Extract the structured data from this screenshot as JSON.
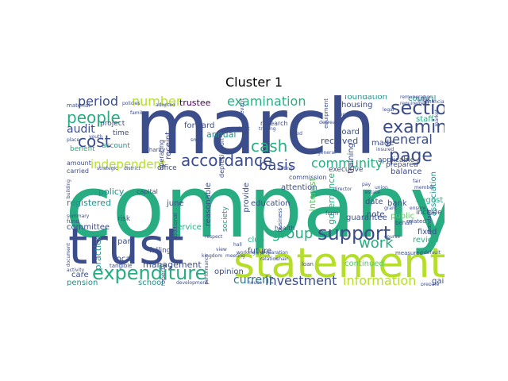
{
  "title": "Cluster 1",
  "palette": {
    "purple": "#440154",
    "indigo": "#3b4d8a",
    "blue": "#2c728e",
    "teal": "#21908c",
    "green": "#27ad81",
    "lime": "#5ec962",
    "yellow": "#b5de2b"
  },
  "words": [
    {
      "text": "company",
      "c": "green"
    },
    {
      "text": "march",
      "c": "indigo"
    },
    {
      "text": "trust",
      "c": "indigo"
    },
    {
      "text": "statement",
      "c": "yellow"
    },
    {
      "text": "expenditure",
      "c": "green"
    },
    {
      "text": "support",
      "c": "indigo"
    },
    {
      "text": "section",
      "c": "indigo"
    },
    {
      "text": "examiner",
      "c": "indigo"
    },
    {
      "text": "examination",
      "c": "green"
    },
    {
      "text": "accordance",
      "c": "indigo"
    },
    {
      "text": "people",
      "c": "green"
    },
    {
      "text": "cost",
      "c": "indigo"
    },
    {
      "text": "number",
      "c": "yellow"
    },
    {
      "text": "page",
      "c": "indigo"
    },
    {
      "text": "independent",
      "c": "yellow"
    },
    {
      "text": "cash",
      "c": "green"
    },
    {
      "text": "basis",
      "c": "indigo"
    },
    {
      "text": "community",
      "c": "green"
    },
    {
      "text": "group",
      "c": "green"
    },
    {
      "text": "work",
      "c": "green"
    },
    {
      "text": "information",
      "c": "yellow"
    },
    {
      "text": "investment",
      "c": "indigo"
    },
    {
      "text": "current",
      "c": "blue"
    },
    {
      "text": "general",
      "c": "indigo"
    },
    {
      "text": "period",
      "c": "indigo"
    },
    {
      "text": "audit",
      "c": "indigo"
    },
    {
      "text": "trustee",
      "c": "purple"
    },
    {
      "text": "received",
      "c": "indigo"
    },
    {
      "text": "annual",
      "c": "teal"
    },
    {
      "text": "board",
      "c": "indigo"
    },
    {
      "text": "council",
      "c": "teal"
    },
    {
      "text": "housing",
      "c": "indigo"
    },
    {
      "text": "foundation",
      "c": "teal"
    },
    {
      "text": "staff",
      "c": "green"
    },
    {
      "text": "made",
      "c": "indigo"
    },
    {
      "text": "prepared",
      "c": "indigo"
    },
    {
      "text": "balance",
      "c": "indigo"
    },
    {
      "text": "association",
      "c": "teal"
    },
    {
      "text": "guarantee",
      "c": "indigo"
    },
    {
      "text": "continued",
      "c": "lime"
    },
    {
      "text": "bank",
      "c": "indigo"
    },
    {
      "text": "date",
      "c": "indigo"
    },
    {
      "text": "note",
      "c": "indigo"
    },
    {
      "text": "public",
      "c": "lime"
    },
    {
      "text": "august",
      "c": "green"
    },
    {
      "text": "fixed",
      "c": "indigo"
    },
    {
      "text": "review",
      "c": "green"
    },
    {
      "text": "gain",
      "c": "indigo"
    },
    {
      "text": "include",
      "c": "indigo"
    },
    {
      "text": "governance",
      "c": "green"
    },
    {
      "text": "future",
      "c": "indigo"
    },
    {
      "text": "club",
      "c": "green"
    },
    {
      "text": "provide",
      "c": "indigo"
    },
    {
      "text": "interest",
      "c": "lime"
    },
    {
      "text": "education",
      "c": "indigo"
    },
    {
      "text": "reasonable",
      "c": "indigo"
    },
    {
      "text": "service",
      "c": "green"
    },
    {
      "text": "management",
      "c": "indigo"
    },
    {
      "text": "june",
      "c": "indigo"
    },
    {
      "text": "policy",
      "c": "teal"
    },
    {
      "text": "registered",
      "c": "teal"
    },
    {
      "text": "committee",
      "c": "indigo"
    },
    {
      "text": "practice",
      "c": "teal"
    },
    {
      "text": "part",
      "c": "indigo"
    },
    {
      "text": "local",
      "c": "indigo"
    },
    {
      "text": "care",
      "c": "indigo"
    },
    {
      "text": "pension",
      "c": "teal"
    },
    {
      "text": "school",
      "c": "teal"
    },
    {
      "text": "opinion",
      "c": "indigo"
    },
    {
      "text": "risk",
      "c": "indigo"
    },
    {
      "text": "falling",
      "c": "indigo"
    },
    {
      "text": "receipt",
      "c": "indigo"
    },
    {
      "text": "forward",
      "c": "indigo"
    },
    {
      "text": "research",
      "c": "indigo"
    },
    {
      "text": "training",
      "c": "indigo"
    },
    {
      "text": "attention",
      "c": "indigo"
    },
    {
      "text": "executive",
      "c": "indigo"
    },
    {
      "text": "project",
      "c": "indigo"
    },
    {
      "text": "time",
      "c": "indigo"
    },
    {
      "text": "benefit",
      "c": "green"
    },
    {
      "text": "account",
      "c": "teal"
    },
    {
      "text": "operating",
      "c": "indigo"
    },
    {
      "text": "capital",
      "c": "indigo"
    },
    {
      "text": "society",
      "c": "teal"
    },
    {
      "text": "health",
      "c": "indigo"
    },
    {
      "text": "office",
      "c": "indigo"
    },
    {
      "text": "carried",
      "c": "indigo"
    },
    {
      "text": "amount",
      "c": "indigo"
    },
    {
      "text": "continue",
      "c": "indigo"
    },
    {
      "text": "tangible",
      "c": "indigo"
    },
    {
      "text": "property",
      "c": "indigo"
    },
    {
      "text": "charity",
      "c": "indigo"
    },
    {
      "text": "applicable",
      "c": "indigo"
    },
    {
      "text": "standard",
      "c": "indigo"
    },
    {
      "text": "depreciation",
      "c": "indigo"
    },
    {
      "text": "related",
      "c": "indigo"
    },
    {
      "text": "relevant",
      "c": "indigo"
    },
    {
      "text": "equipment",
      "c": "indigo"
    },
    {
      "text": "material",
      "c": "indigo"
    },
    {
      "text": "commission",
      "c": "indigo"
    },
    {
      "text": "additional",
      "c": "indigo"
    },
    {
      "text": "auditor",
      "c": "indigo"
    },
    {
      "text": "fund",
      "c": "indigo"
    },
    {
      "text": "form",
      "c": "indigo"
    },
    {
      "text": "business",
      "c": "indigo"
    },
    {
      "text": "measured",
      "c": "indigo"
    },
    {
      "text": "behalf",
      "c": "indigo"
    },
    {
      "text": "loan",
      "c": "indigo"
    },
    {
      "text": "summary",
      "c": "indigo"
    },
    {
      "text": "director",
      "c": "indigo"
    },
    {
      "text": "legal",
      "c": "indigo"
    },
    {
      "text": "youth",
      "c": "indigo"
    },
    {
      "text": "district",
      "c": "indigo"
    },
    {
      "text": "strategic",
      "c": "indigo"
    },
    {
      "text": "financial",
      "c": "indigo"
    },
    {
      "text": "grant",
      "c": "indigo"
    },
    {
      "text": "union",
      "c": "indigo"
    },
    {
      "text": "estate",
      "c": "indigo"
    },
    {
      "text": "small",
      "c": "indigo"
    },
    {
      "text": "voting",
      "c": "indigo"
    },
    {
      "text": "remuneration",
      "c": "indigo"
    },
    {
      "text": "increase",
      "c": "indigo"
    },
    {
      "text": "decrease",
      "c": "indigo"
    },
    {
      "text": "market",
      "c": "indigo"
    },
    {
      "text": "member",
      "c": "indigo"
    },
    {
      "text": "order",
      "c": "indigo"
    },
    {
      "text": "meeting",
      "c": "indigo"
    },
    {
      "text": "view",
      "c": "indigo"
    },
    {
      "text": "provision",
      "c": "indigo"
    },
    {
      "text": "preparation",
      "c": "indigo"
    },
    {
      "text": "activity",
      "c": "indigo"
    },
    {
      "text": "kingdom",
      "c": "indigo"
    },
    {
      "text": "general",
      "c": "indigo"
    },
    {
      "text": "building",
      "c": "indigo"
    },
    {
      "text": "pay",
      "c": "indigo"
    },
    {
      "text": "trading",
      "c": "indigo"
    },
    {
      "text": "insured",
      "c": "indigo"
    },
    {
      "text": "ensure",
      "c": "indigo"
    },
    {
      "text": "fair",
      "c": "indigo"
    },
    {
      "text": "sheet",
      "c": "indigo"
    },
    {
      "text": "hall",
      "c": "indigo"
    },
    {
      "text": "default",
      "c": "indigo"
    },
    {
      "text": "chair",
      "c": "indigo"
    },
    {
      "text": "respect",
      "c": "indigo"
    },
    {
      "text": "performance",
      "c": "indigo"
    },
    {
      "text": "house",
      "c": "indigo"
    },
    {
      "text": "document",
      "c": "indigo"
    },
    {
      "text": "relation",
      "c": "indigo"
    },
    {
      "text": "working",
      "c": "indigo"
    },
    {
      "text": "development",
      "c": "indigo"
    },
    {
      "text": "good",
      "c": "indigo"
    },
    {
      "text": "prepare",
      "c": "indigo"
    },
    {
      "text": "adopted",
      "c": "indigo"
    },
    {
      "text": "family",
      "c": "indigo"
    },
    {
      "text": "place",
      "c": "indigo"
    },
    {
      "text": "course",
      "c": "indigo"
    },
    {
      "text": "requirement",
      "c": "indigo"
    },
    {
      "text": "policies",
      "c": "indigo"
    }
  ]
}
